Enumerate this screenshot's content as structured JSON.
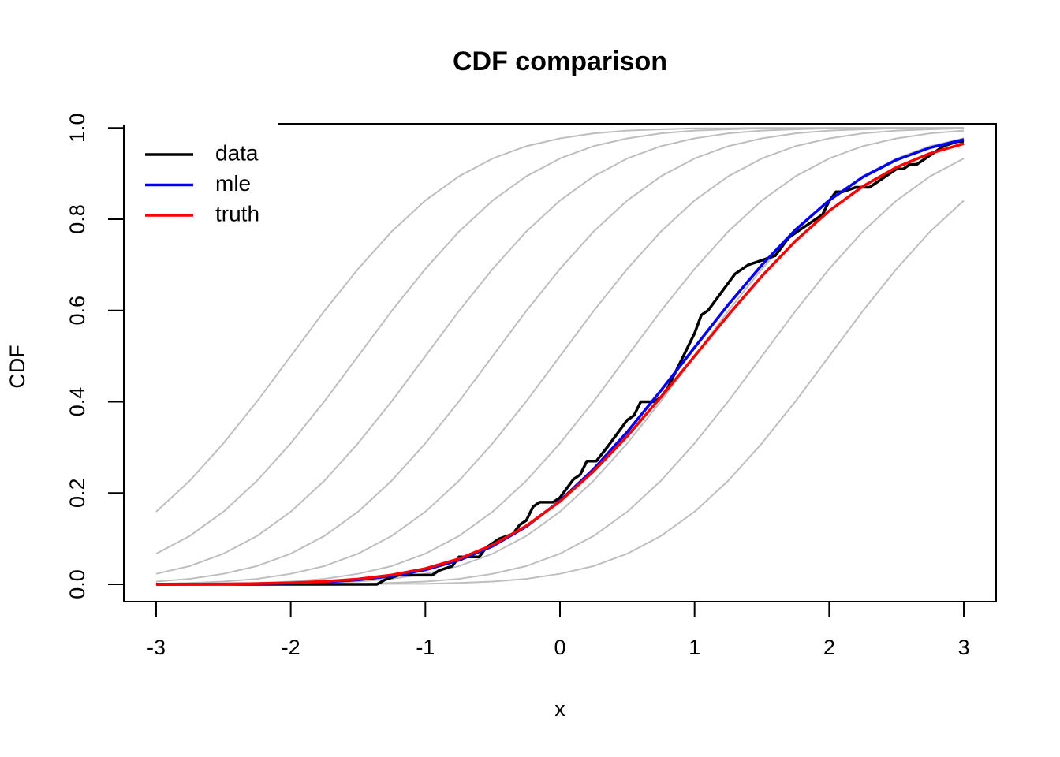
{
  "chart_data": {
    "type": "line",
    "title": "CDF comparison",
    "x_label": "x",
    "y_label": "CDF",
    "xlim": [
      -3.24,
      3.24
    ],
    "ylim": [
      -0.038,
      1.009
    ],
    "xticks": [
      -3,
      -2,
      -1,
      0,
      1,
      2,
      3
    ],
    "yticks": [
      {
        "value": 0,
        "label": "0.0"
      },
      {
        "value": 0.2,
        "label": "0.2"
      },
      {
        "value": 0.4,
        "label": "0.4"
      },
      {
        "value": 0.6,
        "label": "0.6"
      },
      {
        "value": 0.8,
        "label": "0.8"
      },
      {
        "value": 1,
        "label": "1.0"
      }
    ],
    "legend": "topleft",
    "x": [
      -3,
      -2.75,
      -2.5,
      -2.25,
      -2,
      -1.75,
      -1.5,
      -1.25,
      -1,
      -0.75,
      -0.5,
      -0.25,
      0,
      0.25,
      0.5,
      0.75,
      1,
      1.25,
      1.5,
      1.75,
      2,
      2.25,
      2.5,
      2.75,
      3
    ],
    "background_series": [
      {
        "color": "#bebebe",
        "values": [
          0.159,
          0.227,
          0.309,
          0.401,
          0.5,
          0.599,
          0.691,
          0.773,
          0.841,
          0.894,
          0.933,
          0.96,
          0.977,
          0.988,
          0.994,
          0.997,
          0.999,
          0.999,
          1,
          1,
          1,
          1,
          1,
          1,
          1
        ]
      },
      {
        "color": "#bebebe",
        "values": [
          0.067,
          0.106,
          0.159,
          0.227,
          0.309,
          0.401,
          0.5,
          0.599,
          0.691,
          0.773,
          0.841,
          0.894,
          0.933,
          0.96,
          0.977,
          0.988,
          0.994,
          0.997,
          0.999,
          0.999,
          1,
          1,
          1,
          1,
          1
        ]
      },
      {
        "color": "#bebebe",
        "values": [
          0.023,
          0.04,
          0.067,
          0.106,
          0.159,
          0.227,
          0.309,
          0.401,
          0.5,
          0.599,
          0.691,
          0.773,
          0.841,
          0.894,
          0.933,
          0.96,
          0.977,
          0.988,
          0.994,
          0.997,
          0.999,
          0.999,
          1,
          1,
          1
        ]
      },
      {
        "color": "#bebebe",
        "values": [
          0.006,
          0.012,
          0.023,
          0.04,
          0.067,
          0.106,
          0.159,
          0.227,
          0.309,
          0.401,
          0.5,
          0.599,
          0.691,
          0.773,
          0.841,
          0.894,
          0.933,
          0.96,
          0.977,
          0.988,
          0.994,
          0.997,
          0.999,
          0.999,
          1
        ]
      },
      {
        "color": "#bebebe",
        "values": [
          0.001,
          0.003,
          0.006,
          0.012,
          0.023,
          0.04,
          0.067,
          0.106,
          0.159,
          0.227,
          0.309,
          0.401,
          0.5,
          0.599,
          0.691,
          0.773,
          0.841,
          0.894,
          0.933,
          0.96,
          0.977,
          0.988,
          0.994,
          0.997,
          0.999
        ]
      },
      {
        "color": "#bebebe",
        "values": [
          0,
          0.001,
          0.001,
          0.003,
          0.006,
          0.012,
          0.023,
          0.04,
          0.067,
          0.106,
          0.159,
          0.227,
          0.309,
          0.401,
          0.5,
          0.599,
          0.691,
          0.773,
          0.841,
          0.894,
          0.933,
          0.96,
          0.977,
          0.988,
          0.994
        ]
      },
      {
        "color": "#bebebe",
        "values": [
          0,
          0,
          0,
          0.001,
          0.001,
          0.003,
          0.006,
          0.012,
          0.023,
          0.04,
          0.067,
          0.106,
          0.159,
          0.227,
          0.309,
          0.401,
          0.5,
          0.599,
          0.691,
          0.773,
          0.841,
          0.894,
          0.933,
          0.96,
          0.977
        ]
      },
      {
        "color": "#bebebe",
        "values": [
          0,
          0,
          0,
          0,
          0,
          0.001,
          0.001,
          0.003,
          0.006,
          0.012,
          0.023,
          0.04,
          0.067,
          0.106,
          0.159,
          0.227,
          0.309,
          0.401,
          0.5,
          0.599,
          0.691,
          0.773,
          0.841,
          0.894,
          0.933
        ]
      },
      {
        "color": "#bebebe",
        "values": [
          0,
          0,
          0,
          0,
          0,
          0,
          0,
          0.001,
          0.001,
          0.003,
          0.006,
          0.012,
          0.023,
          0.04,
          0.067,
          0.106,
          0.159,
          0.227,
          0.309,
          0.401,
          0.5,
          0.599,
          0.691,
          0.773,
          0.841
        ]
      }
    ],
    "series": [
      {
        "name": "data",
        "color": "#000000",
        "x": [
          -3,
          -1.36,
          -1.3,
          -1.2,
          -1,
          -0.95,
          -0.9,
          -0.8,
          -0.75,
          -0.6,
          -0.55,
          -0.45,
          -0.35,
          -0.3,
          -0.25,
          -0.2,
          -0.15,
          -0.05,
          0,
          0.1,
          0.15,
          0.2,
          0.27,
          0.35,
          0.4,
          0.5,
          0.55,
          0.6,
          0.7,
          0.75,
          0.8,
          0.9,
          1,
          1.05,
          1.1,
          1.2,
          1.25,
          1.3,
          1.4,
          1.5,
          1.6,
          1.7,
          1.8,
          1.9,
          1.95,
          2,
          2.05,
          2.1,
          2.2,
          2.3,
          2.4,
          2.5,
          2.55,
          2.6,
          2.65,
          2.75,
          2.85,
          2.95,
          3
        ],
        "values": [
          0,
          0,
          0.01,
          0.02,
          0.02,
          0.02,
          0.03,
          0.04,
          0.06,
          0.06,
          0.08,
          0.1,
          0.11,
          0.13,
          0.14,
          0.17,
          0.18,
          0.18,
          0.19,
          0.23,
          0.24,
          0.27,
          0.27,
          0.3,
          0.32,
          0.36,
          0.37,
          0.4,
          0.4,
          0.41,
          0.43,
          0.49,
          0.55,
          0.59,
          0.6,
          0.64,
          0.66,
          0.68,
          0.7,
          0.71,
          0.72,
          0.76,
          0.78,
          0.8,
          0.81,
          0.84,
          0.86,
          0.86,
          0.87,
          0.87,
          0.89,
          0.91,
          0.91,
          0.92,
          0.92,
          0.94,
          0.96,
          0.97,
          0.97
        ]
      },
      {
        "name": "mle",
        "color": "#0000ff",
        "values": [
          0.0001,
          0.0002,
          0.0005,
          0.0012,
          0.0025,
          0.0051,
          0.0098,
          0.0181,
          0.0317,
          0.0527,
          0.0836,
          0.1265,
          0.1828,
          0.2525,
          0.334,
          0.4247,
          0.519,
          0.6126,
          0.6998,
          0.777,
          0.8413,
          0.8922,
          0.93,
          0.9567,
          0.9745
        ]
      },
      {
        "name": "truth",
        "color": "#ff0000",
        "values": [
          0.0001,
          0.0003,
          0.0007,
          0.0016,
          0.0032,
          0.0062,
          0.0115,
          0.0204,
          0.0345,
          0.0558,
          0.0863,
          0.128,
          0.1817,
          0.2477,
          0.3246,
          0.4102,
          0.5,
          0.5898,
          0.6754,
          0.7523,
          0.8183,
          0.872,
          0.9137,
          0.9442,
          0.9655
        ]
      }
    ]
  }
}
